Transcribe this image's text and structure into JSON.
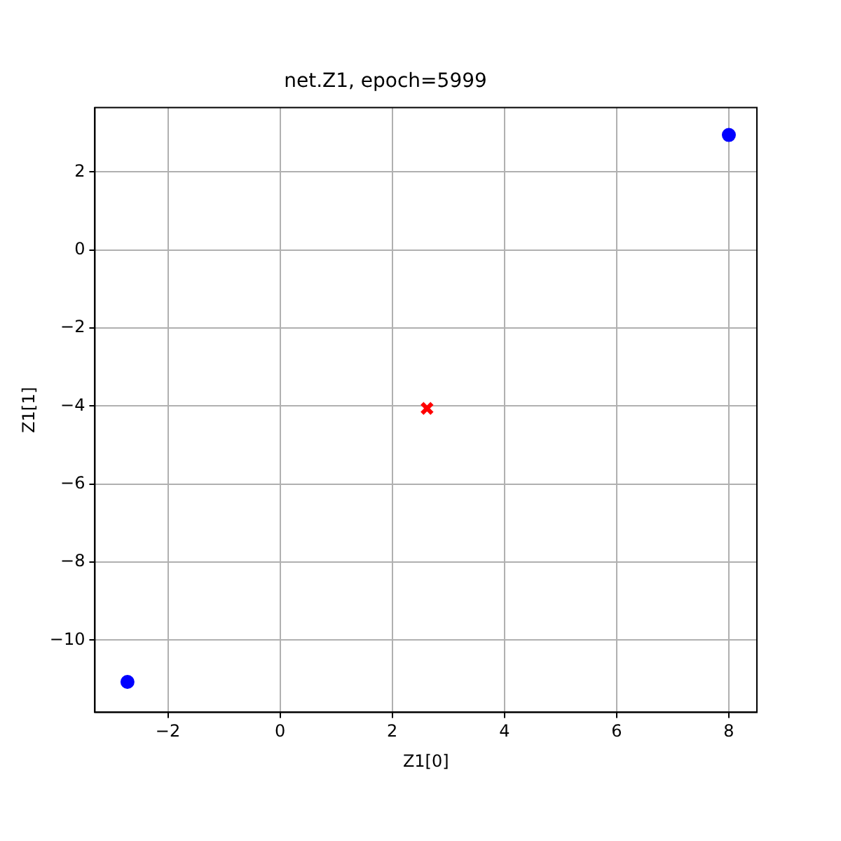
{
  "chart_data": {
    "type": "scatter",
    "title": "net.Z1, epoch=5999",
    "xlabel": "Z1[0]",
    "ylabel": "Z1[1]",
    "series": [
      {
        "color": "#0000ff",
        "marker": "circle",
        "x": [
          8.0,
          -2.72
        ],
        "values": [
          2.95,
          -11.07
        ]
      },
      {
        "color": "#ff0000",
        "marker": "cross",
        "x": [
          2.62
        ],
        "values": [
          -4.06
        ]
      }
    ],
    "xlim": [
      -3.3,
      8.5
    ],
    "ylim": [
      -11.85,
      3.65
    ],
    "xticks": [
      {
        "value": -2,
        "label": "−2"
      },
      0,
      2,
      4,
      6,
      8
    ],
    "yticks": [
      {
        "value": -10,
        "label": "−10"
      },
      {
        "value": -8,
        "label": "−8"
      },
      {
        "value": -6,
        "label": "−6"
      },
      {
        "value": -4,
        "label": "−4"
      },
      {
        "value": -2,
        "label": "−2"
      },
      0,
      2
    ],
    "grid": true,
    "legend": false
  }
}
